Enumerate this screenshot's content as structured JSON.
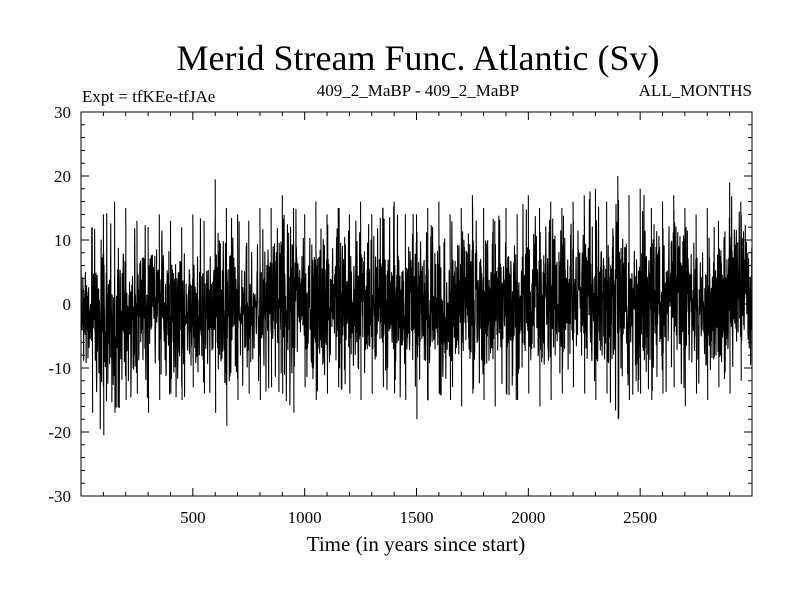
{
  "chart_data": {
    "type": "line",
    "title": "Merid Stream Func. Atlantic (Sv)",
    "subtitle_left": "Expt = tfKEe-tfJAe",
    "subtitle_center": "409_2_MaBP - 409_2_MaBP",
    "subtitle_right": "ALL_MONTHS",
    "xlabel": "Time (in years since start)",
    "ylabel": "",
    "xlim": [
      0,
      3000
    ],
    "ylim": [
      -30,
      30
    ],
    "xticks": [
      500,
      1000,
      1500,
      2000,
      2500
    ],
    "yticks": [
      -30,
      -20,
      -10,
      0,
      10,
      20,
      30
    ],
    "grid": false,
    "line_color": "#000000",
    "series": [
      {
        "x": [
          0,
          50,
          100,
          150,
          200,
          250,
          300,
          350,
          400,
          450,
          500,
          550,
          600,
          650,
          700,
          750,
          800,
          850,
          900,
          950,
          1000,
          1050,
          1100,
          1150,
          1200,
          1250,
          1300,
          1350,
          1400,
          1450,
          1500,
          1550,
          1600,
          1650,
          1700,
          1750,
          1800,
          1850,
          1900,
          1950,
          2000,
          2050,
          2100,
          2150,
          2200,
          2250,
          2300,
          2350,
          2400,
          2450,
          2500,
          2550,
          2600,
          2650,
          2700,
          2750,
          2800,
          2850,
          2900,
          2950,
          3000
        ],
        "mean": [
          0,
          -2,
          -4,
          -3,
          -2,
          -1,
          -1,
          0,
          -1,
          -2,
          -1,
          0,
          -1,
          -2,
          -1,
          -2,
          -1,
          1,
          0,
          0,
          1,
          0,
          -1,
          0,
          1,
          0,
          0,
          1,
          0,
          -1,
          0,
          -1,
          0,
          -1,
          0,
          1,
          0,
          -1,
          0,
          0,
          1,
          0,
          0,
          0,
          1,
          2,
          1,
          0,
          1,
          0,
          -1,
          0,
          0,
          1,
          0,
          0,
          -1,
          0,
          1,
          2,
          1
        ],
        "max": [
          8,
          12,
          14,
          16,
          15,
          13,
          12,
          14,
          13,
          12,
          14,
          13,
          19.5,
          15,
          14,
          13,
          15,
          15,
          17,
          15,
          14,
          16,
          14,
          15,
          14,
          16,
          14,
          15,
          16,
          14,
          14,
          15,
          16,
          14,
          15,
          17,
          15,
          13,
          15,
          14,
          17,
          15,
          16,
          15,
          16,
          17,
          18,
          16,
          20,
          17,
          18,
          15,
          16,
          17,
          15,
          14,
          15,
          13,
          19,
          16,
          17
        ],
        "min": [
          -12,
          -17,
          -20.5,
          -17,
          -15,
          -14,
          -17,
          -15,
          -14,
          -15,
          -13,
          -14,
          -17,
          -19,
          -15,
          -14,
          -15,
          -13,
          -14,
          -17,
          -13,
          -15,
          -14,
          -13,
          -14,
          -15,
          -14,
          -13,
          -14,
          -15,
          -18,
          -15,
          -14,
          -15,
          -16,
          -14,
          -15,
          -16,
          -14,
          -15,
          -14,
          -16,
          -15,
          -14,
          -13,
          -14,
          -15,
          -14,
          -18,
          -15,
          -14,
          -15,
          -14,
          -13,
          -16,
          -14,
          -15,
          -13,
          -14,
          -12,
          -12
        ]
      }
    ]
  }
}
